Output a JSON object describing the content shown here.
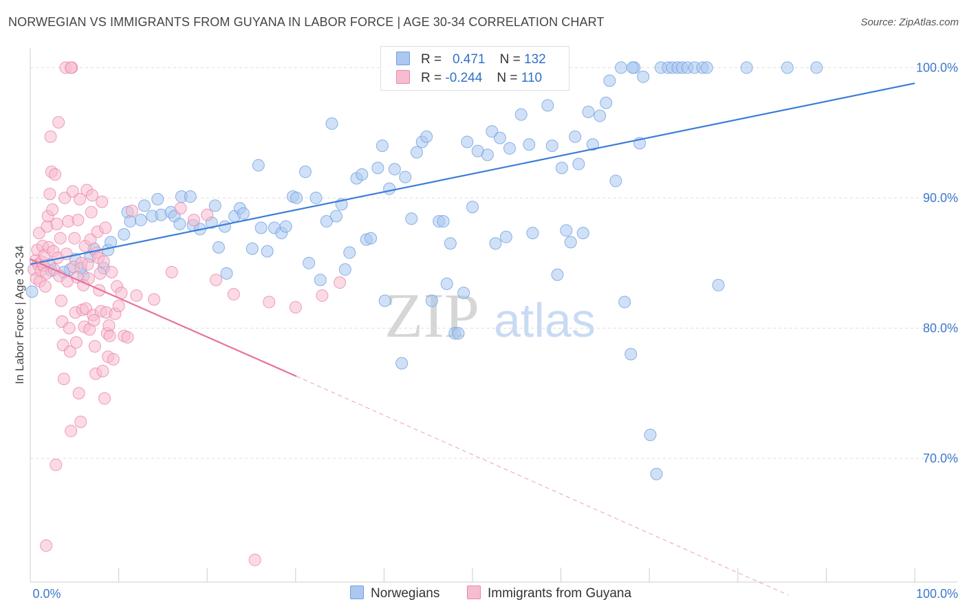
{
  "title": "NORWEGIAN VS IMMIGRANTS FROM GUYANA IN LABOR FORCE | AGE 30-34 CORRELATION CHART",
  "source": "Source: ZipAtlas.com",
  "watermark": {
    "zip": "ZIP",
    "atlas": "atlas"
  },
  "legend": {
    "r_label": "R =",
    "n_label": "N =",
    "series": [
      {
        "name": "Norwegians",
        "r": "0.471",
        "n": "132",
        "fill": "#aac8f0",
        "stroke": "#6f9fe0"
      },
      {
        "name": "Immigrants from Guyana",
        "r": "-0.244",
        "n": "110",
        "fill": "#f8bcd0",
        "stroke": "#ea85a8"
      }
    ]
  },
  "chart_data": {
    "type": "scatter",
    "title": "NORWEGIAN VS IMMIGRANTS FROM GUYANA IN LABOR FORCE | AGE 30-34 CORRELATION CHART",
    "xlabel": "",
    "ylabel": "In Labor Force | Age 30-34",
    "xlim": [
      0,
      100
    ],
    "ylim": [
      60.5,
      101.5
    ],
    "x_tick_labels": [
      "0.0%",
      "100.0%"
    ],
    "y_ticks": [
      70,
      80,
      90,
      100
    ],
    "y_tick_labels": [
      "70.0%",
      "80.0%",
      "90.0%",
      "100.0%"
    ],
    "grid": true,
    "legend_position": "top-center",
    "colors": {
      "norwegians": "#3b7dd8",
      "guyana": "#e8709a",
      "axis_text": "#3b78c8",
      "grid": "#dddddd"
    },
    "series": [
      {
        "name": "Norwegians",
        "trend": {
          "x": [
            0,
            100
          ],
          "y": [
            84.9,
            98.8
          ],
          "style": "solid"
        },
        "points": [
          [
            0.2,
            82.8
          ],
          [
            2.4,
            84.4
          ],
          [
            2.2,
            84.9
          ],
          [
            4.5,
            84.5
          ],
          [
            3.8,
            84.3
          ],
          [
            5.1,
            85.3
          ],
          [
            6.0,
            84.0
          ],
          [
            5.7,
            84.6
          ],
          [
            6.8,
            85.5
          ],
          [
            7.2,
            86.1
          ],
          [
            8.3,
            84.6
          ],
          [
            8.8,
            86.0
          ],
          [
            9.1,
            86.6
          ],
          [
            10.6,
            87.2
          ],
          [
            11.0,
            88.9
          ],
          [
            11.3,
            88.2
          ],
          [
            12.5,
            88.3
          ],
          [
            12.9,
            89.4
          ],
          [
            13.8,
            88.6
          ],
          [
            14.4,
            89.9
          ],
          [
            14.8,
            88.7
          ],
          [
            15.9,
            88.9
          ],
          [
            16.3,
            88.6
          ],
          [
            16.9,
            88.0
          ],
          [
            17.1,
            90.1
          ],
          [
            18.1,
            90.1
          ],
          [
            18.4,
            87.9
          ],
          [
            19.2,
            87.6
          ],
          [
            20.5,
            88.1
          ],
          [
            20.9,
            89.4
          ],
          [
            21.3,
            86.2
          ],
          [
            22.0,
            87.8
          ],
          [
            22.2,
            84.2
          ],
          [
            23.1,
            88.6
          ],
          [
            23.7,
            89.2
          ],
          [
            24.1,
            88.8
          ],
          [
            25.1,
            86.1
          ],
          [
            25.8,
            92.5
          ],
          [
            26.1,
            87.7
          ],
          [
            26.8,
            85.9
          ],
          [
            27.6,
            87.7
          ],
          [
            28.4,
            87.3
          ],
          [
            28.9,
            87.8
          ],
          [
            29.7,
            90.1
          ],
          [
            30.1,
            90.0
          ],
          [
            31.1,
            92.0
          ],
          [
            31.5,
            85.0
          ],
          [
            32.3,
            90.0
          ],
          [
            32.8,
            83.7
          ],
          [
            33.5,
            88.2
          ],
          [
            34.1,
            95.7
          ],
          [
            34.6,
            88.6
          ],
          [
            35.2,
            89.5
          ],
          [
            35.6,
            84.5
          ],
          [
            36.1,
            85.8
          ],
          [
            36.9,
            91.5
          ],
          [
            37.5,
            91.8
          ],
          [
            38.0,
            86.8
          ],
          [
            38.5,
            86.9
          ],
          [
            39.3,
            92.3
          ],
          [
            39.8,
            94.0
          ],
          [
            40.1,
            82.1
          ],
          [
            40.6,
            90.7
          ],
          [
            41.2,
            92.2
          ],
          [
            42.0,
            77.3
          ],
          [
            42.4,
            91.6
          ],
          [
            43.1,
            88.4
          ],
          [
            43.7,
            93.5
          ],
          [
            44.3,
            94.3
          ],
          [
            44.8,
            94.7
          ],
          [
            45.4,
            82.1
          ],
          [
            46.2,
            88.2
          ],
          [
            46.7,
            88.2
          ],
          [
            47.1,
            83.4
          ],
          [
            47.5,
            86.5
          ],
          [
            48.0,
            79.6
          ],
          [
            48.4,
            79.6
          ],
          [
            49.0,
            82.7
          ],
          [
            49.4,
            94.3
          ],
          [
            50.0,
            89.3
          ],
          [
            50.6,
            93.6
          ],
          [
            51.1,
            99.0
          ],
          [
            51.7,
            93.3
          ],
          [
            52.2,
            95.1
          ],
          [
            52.6,
            86.5
          ],
          [
            53.1,
            94.6
          ],
          [
            53.8,
            87.0
          ],
          [
            54.2,
            93.8
          ],
          [
            55.0,
            99.0
          ],
          [
            55.5,
            96.4
          ],
          [
            56.4,
            94.1
          ],
          [
            56.8,
            87.3
          ],
          [
            57.3,
            100.0
          ],
          [
            58.0,
            100.0
          ],
          [
            58.5,
            97.1
          ],
          [
            59.0,
            94.0
          ],
          [
            59.6,
            84.1
          ],
          [
            60.1,
            92.3
          ],
          [
            60.6,
            87.5
          ],
          [
            61.1,
            86.6
          ],
          [
            61.6,
            94.7
          ],
          [
            62.0,
            92.6
          ],
          [
            62.5,
            87.3
          ],
          [
            63.1,
            96.6
          ],
          [
            63.6,
            94.1
          ],
          [
            64.4,
            96.3
          ],
          [
            65.1,
            97.3
          ],
          [
            65.5,
            99.0
          ],
          [
            66.2,
            91.3
          ],
          [
            66.8,
            100.0
          ],
          [
            67.2,
            82.0
          ],
          [
            67.9,
            78.0
          ],
          [
            68.3,
            100.0
          ],
          [
            68.9,
            94.2
          ],
          [
            69.3,
            99.3
          ],
          [
            70.1,
            71.8
          ],
          [
            70.8,
            68.8
          ],
          [
            71.3,
            100.0
          ],
          [
            72.1,
            100.0
          ],
          [
            72.6,
            100.0
          ],
          [
            73.2,
            100.0
          ],
          [
            73.7,
            100.0
          ],
          [
            74.3,
            100.0
          ],
          [
            75.1,
            100.0
          ],
          [
            76.0,
            100.0
          ],
          [
            76.5,
            100.0
          ],
          [
            77.8,
            83.3
          ],
          [
            81.0,
            100.0
          ],
          [
            85.6,
            100.0
          ],
          [
            88.9,
            100.0
          ],
          [
            68.1,
            100.0
          ]
        ]
      },
      {
        "name": "Immigrants from Guyana",
        "trend": {
          "x": [
            0,
            30.1
          ],
          "y": [
            85.3,
            76.3
          ],
          "style": "solid",
          "extended_to": [
            85.7,
            59.5
          ],
          "extended_style": "dashed"
        },
        "points": [
          [
            0.4,
            84.5
          ],
          [
            0.6,
            85.2
          ],
          [
            0.7,
            83.8
          ],
          [
            0.8,
            86.0
          ],
          [
            0.9,
            84.9
          ],
          [
            1.0,
            87.3
          ],
          [
            1.1,
            83.6
          ],
          [
            1.2,
            84.4
          ],
          [
            1.3,
            85.1
          ],
          [
            1.4,
            86.3
          ],
          [
            1.5,
            84.8
          ],
          [
            1.6,
            85.6
          ],
          [
            1.7,
            83.2
          ],
          [
            1.8,
            84.2
          ],
          [
            1.9,
            87.8
          ],
          [
            2.0,
            88.6
          ],
          [
            2.1,
            86.2
          ],
          [
            2.2,
            90.3
          ],
          [
            2.3,
            94.7
          ],
          [
            2.4,
            92.0
          ],
          [
            2.5,
            89.1
          ],
          [
            2.6,
            85.9
          ],
          [
            2.7,
            84.5
          ],
          [
            2.8,
            91.8
          ],
          [
            3.0,
            88.0
          ],
          [
            3.1,
            85.4
          ],
          [
            3.2,
            95.8
          ],
          [
            3.3,
            84.0
          ],
          [
            3.4,
            86.9
          ],
          [
            3.5,
            82.1
          ],
          [
            3.6,
            80.5
          ],
          [
            3.7,
            78.7
          ],
          [
            3.8,
            76.1
          ],
          [
            3.9,
            90.0
          ],
          [
            4.0,
            100.0
          ],
          [
            4.1,
            85.7
          ],
          [
            4.2,
            83.6
          ],
          [
            4.3,
            88.2
          ],
          [
            4.4,
            80.0
          ],
          [
            4.5,
            78.2
          ],
          [
            4.6,
            72.1
          ],
          [
            4.7,
            100.0
          ],
          [
            4.8,
            90.5
          ],
          [
            4.9,
            84.7
          ],
          [
            5.0,
            86.9
          ],
          [
            5.1,
            81.2
          ],
          [
            5.2,
            78.9
          ],
          [
            5.3,
            83.9
          ],
          [
            5.4,
            88.3
          ],
          [
            5.5,
            75.0
          ],
          [
            5.6,
            89.9
          ],
          [
            5.7,
            72.8
          ],
          [
            5.8,
            85.0
          ],
          [
            5.9,
            81.4
          ],
          [
            6.0,
            83.3
          ],
          [
            6.1,
            80.1
          ],
          [
            6.2,
            86.3
          ],
          [
            6.3,
            81.5
          ],
          [
            6.4,
            90.6
          ],
          [
            6.5,
            84.9
          ],
          [
            6.6,
            83.8
          ],
          [
            6.7,
            79.9
          ],
          [
            6.8,
            86.8
          ],
          [
            6.9,
            88.9
          ],
          [
            7.0,
            90.2
          ],
          [
            7.1,
            81.0
          ],
          [
            7.2,
            80.6
          ],
          [
            7.3,
            78.6
          ],
          [
            7.4,
            76.5
          ],
          [
            7.5,
            85.8
          ],
          [
            7.6,
            87.4
          ],
          [
            7.7,
            85.4
          ],
          [
            7.8,
            82.9
          ],
          [
            7.9,
            84.2
          ],
          [
            8.0,
            81.3
          ],
          [
            8.1,
            89.7
          ],
          [
            8.2,
            76.7
          ],
          [
            8.3,
            85.1
          ],
          [
            8.4,
            74.6
          ],
          [
            8.5,
            87.7
          ],
          [
            8.6,
            81.2
          ],
          [
            8.7,
            79.6
          ],
          [
            8.8,
            77.8
          ],
          [
            8.9,
            80.2
          ],
          [
            9.0,
            79.4
          ],
          [
            9.2,
            84.3
          ],
          [
            9.4,
            77.6
          ],
          [
            9.6,
            81.1
          ],
          [
            9.8,
            83.2
          ],
          [
            10.0,
            81.7
          ],
          [
            10.3,
            82.7
          ],
          [
            10.6,
            79.4
          ],
          [
            11.0,
            79.3
          ],
          [
            11.5,
            89.0
          ],
          [
            12.0,
            82.5
          ],
          [
            14.0,
            82.2
          ],
          [
            16.0,
            84.3
          ],
          [
            17.0,
            89.2
          ],
          [
            18.5,
            88.3
          ],
          [
            20.0,
            88.7
          ],
          [
            21.0,
            83.7
          ],
          [
            23.0,
            82.6
          ],
          [
            25.4,
            62.2
          ],
          [
            27.0,
            82.0
          ],
          [
            30.0,
            81.6
          ],
          [
            33.0,
            82.5
          ],
          [
            35.0,
            83.5
          ],
          [
            1.8,
            63.3
          ],
          [
            2.9,
            69.5
          ],
          [
            4.6,
            100.0
          ]
        ]
      }
    ]
  }
}
